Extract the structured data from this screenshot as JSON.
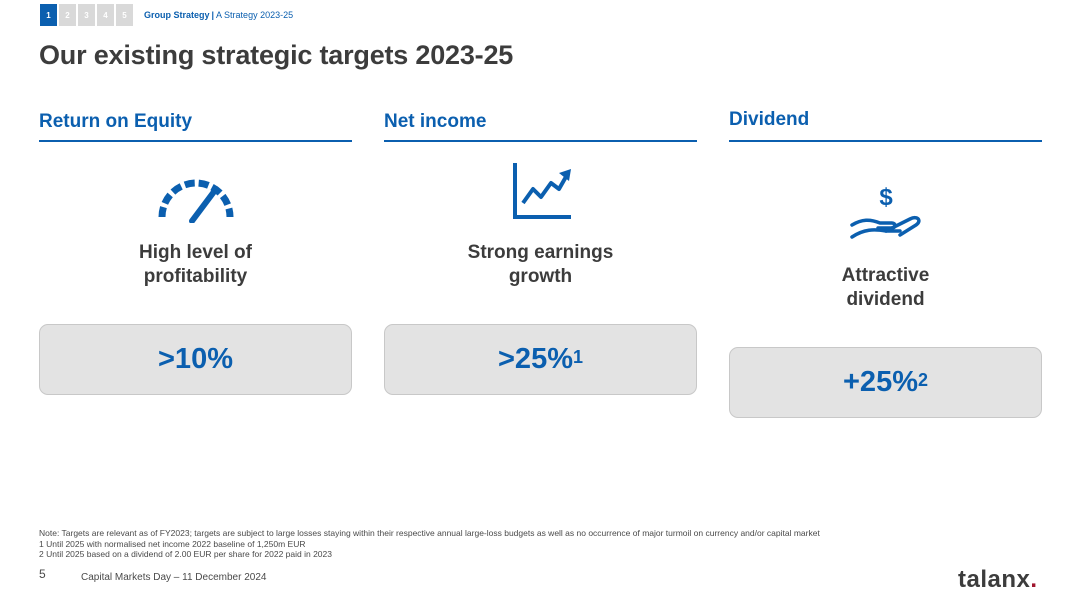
{
  "nav": {
    "sections": [
      "1",
      "2",
      "3",
      "4",
      "5"
    ],
    "active_index": 0,
    "breadcrumb_section": "Group Strategy",
    "breadcrumb_separator": "|",
    "breadcrumb_topic": "A Strategy 2023-25"
  },
  "title": "Our existing strategic targets 2023-25",
  "columns": [
    {
      "heading": "Return on Equity",
      "icon": "speedometer-icon",
      "label_line1": "High level of",
      "label_line2": "profitability",
      "kpi_value": ">10%",
      "kpi_footnote": ""
    },
    {
      "heading": "Net income",
      "icon": "growth-chart-icon",
      "label_line1": "Strong earnings",
      "label_line2": "growth",
      "kpi_value": ">25%",
      "kpi_footnote": "1"
    },
    {
      "heading": "Dividend",
      "icon": "hand-dollar-icon",
      "label_line1": "Attractive",
      "label_line2": "dividend",
      "kpi_value": "+25%",
      "kpi_footnote": "2"
    }
  ],
  "notes": [
    "Note: Targets are relevant as of FY2023; targets are subject to large losses staying within their respective annual large-loss budgets as well as no occurrence of major turmoil on currency and/or capital market",
    "1 Until 2025 with normalised net income 2022 baseline of 1,250m EUR",
    "2 Until 2025 based on a dividend of 2.00 EUR per share for 2022 paid in 2023"
  ],
  "footer": {
    "page_number": "5",
    "event": "Capital Markets Day – 11 December 2024",
    "logo_text": "talanx",
    "logo_dot": "."
  },
  "colors": {
    "accent": "#0b5faf",
    "text_dark": "#3c3c3c",
    "box_bg": "#e3e3e3",
    "nav_inactive": "#d9d9d9",
    "logo_dot": "#a0152e"
  }
}
